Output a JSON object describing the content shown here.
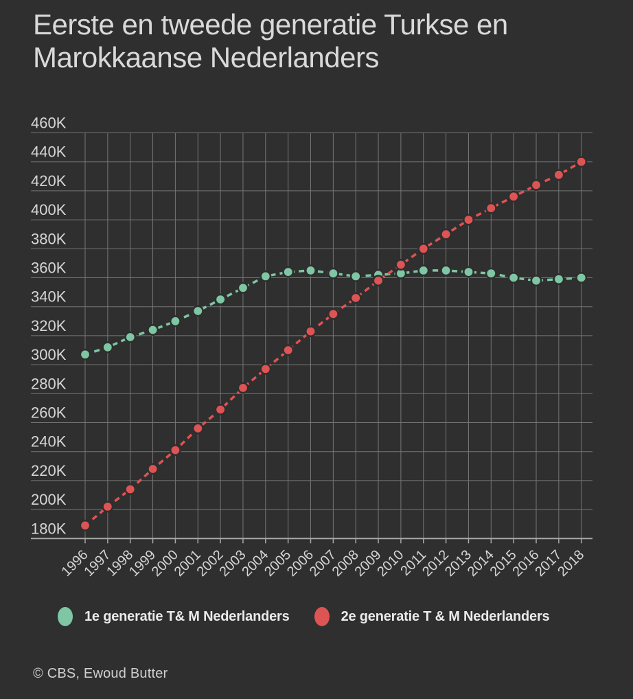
{
  "title": "Eerste en tweede generatie Turkse en Marokkaanse Nederlanders",
  "footer": {
    "credit": "© CBS,  Ewoud Butter"
  },
  "chart_data": {
    "type": "line",
    "title": "Eerste en tweede generatie Turkse en Marokkaanse Nederlanders",
    "x": [
      1996,
      1997,
      1998,
      1999,
      2000,
      2001,
      2002,
      2003,
      2004,
      2005,
      2006,
      2007,
      2008,
      2009,
      2010,
      2011,
      2012,
      2013,
      2014,
      2015,
      2016,
      2017,
      2018
    ],
    "series": [
      {
        "name": "1e generatie T& M Nederlanders",
        "color": "#7ec6a4",
        "values_thousands": [
          307,
          312,
          319,
          324,
          330,
          337,
          345,
          353,
          361,
          364,
          365,
          363,
          361,
          362,
          363,
          365,
          365,
          364,
          363,
          360,
          358,
          359,
          360
        ]
      },
      {
        "name": "2e generatie T & M Nederlanders",
        "color": "#dd5454",
        "values_thousands": [
          189,
          202,
          214,
          228,
          241,
          256,
          269,
          284,
          297,
          310,
          323,
          335,
          346,
          358,
          369,
          380,
          390,
          400,
          408,
          416,
          424,
          431,
          440
        ]
      }
    ],
    "xlabel": "",
    "ylabel": "",
    "ylim_thousands": [
      180,
      460
    ],
    "ytick_step_thousands": 20,
    "ytick_suffix": "K",
    "grid": true,
    "legend_position": "bottom",
    "style": {
      "background": "#2f2f2f",
      "gridline_color": "#767676",
      "axis_color": "#a9a9a9",
      "tick_label_color": "#d6d6d6",
      "line_dash": "dashed",
      "markers": "filled-circles"
    }
  }
}
